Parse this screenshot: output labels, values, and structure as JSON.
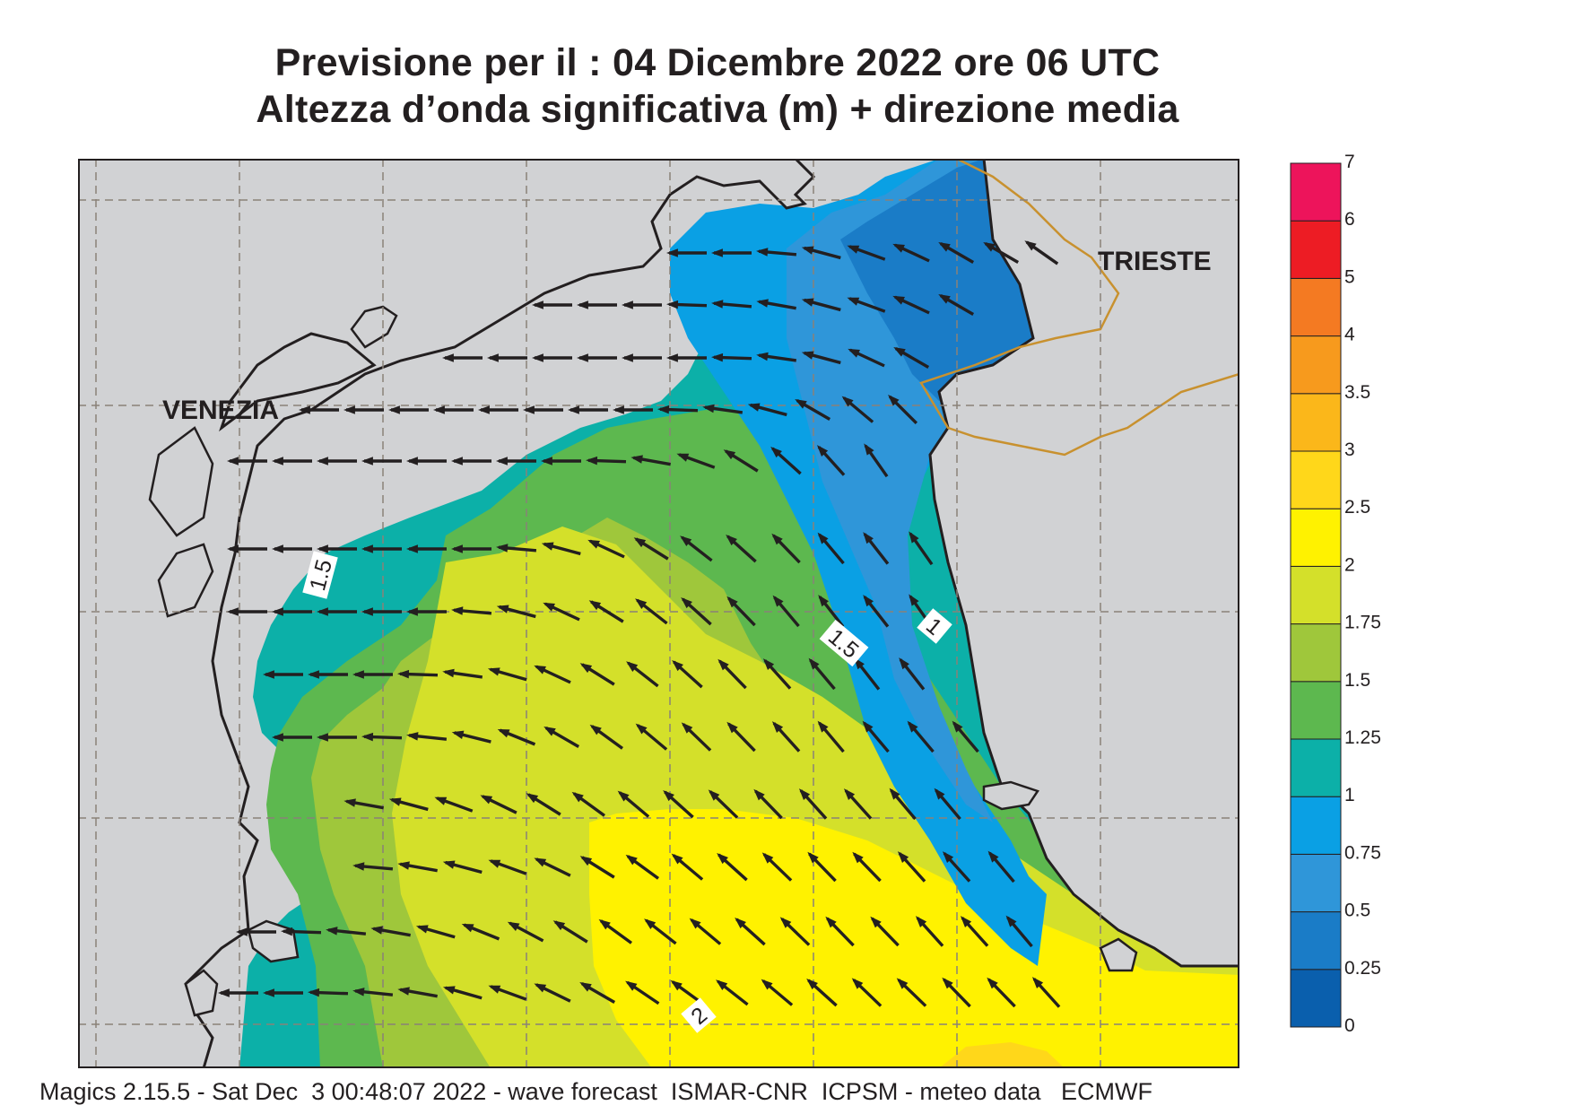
{
  "header": {
    "line1": "Previsione per il  :  04 Dicembre  2022   ore 06 UTC",
    "line2": "Altezza d’onda significativa (m) + direzione media"
  },
  "map": {
    "places": [
      {
        "name": "VENEZIA"
      },
      {
        "name": "TRIESTE"
      }
    ],
    "contour_labels": [
      "1.5",
      "1.5",
      "1",
      "2"
    ],
    "land_color": "#d1d2d4",
    "coast_color": "#231f20",
    "border_color": "#c8912f",
    "arrow_color": "#231f20",
    "arrow_direction": "toward west / north-west"
  },
  "legend": {
    "unit": "m",
    "ticks": [
      "0",
      "0.25",
      "0.5",
      "0.75",
      "1",
      "1.25",
      "1.5",
      "1.75",
      "2",
      "2.5",
      "3",
      "3.5",
      "4",
      "5",
      "6",
      "7"
    ],
    "colors": [
      "#0a5fad",
      "#1a7cc7",
      "#2f96d9",
      "#0aa0e4",
      "#0cb0a8",
      "#5db84f",
      "#9fc73b",
      "#d4e02a",
      "#fff200",
      "#ffd71a",
      "#fbb71a",
      "#f79a1d",
      "#f47a22",
      "#ed1c24",
      "#ed145b"
    ]
  },
  "footer": {
    "text": "Magics 2.15.5 - Sat Dec  3 00:48:07 2022 - wave forecast  ISMAR-CNR  ICPSM - meteo data   ECMWF"
  }
}
